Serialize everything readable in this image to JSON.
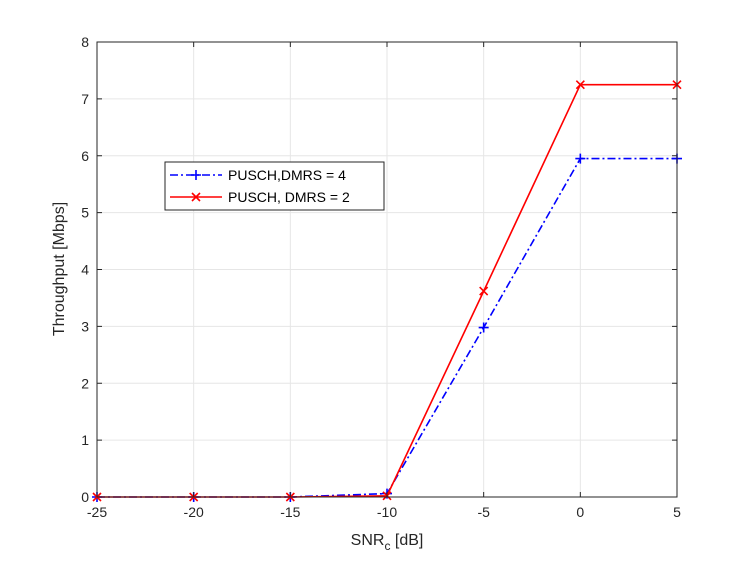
{
  "chart_data": {
    "type": "line",
    "xlabel_main": "SNR",
    "xlabel_sub": "c",
    "xlabel_unit": " [dB]",
    "ylabel": "Throughput [Mbps]",
    "xlim": [
      -25,
      5
    ],
    "ylim": [
      0,
      8
    ],
    "xticks": [
      -25,
      -20,
      -15,
      -10,
      -5,
      0,
      5
    ],
    "yticks": [
      0,
      1,
      2,
      3,
      4,
      5,
      6,
      7,
      8
    ],
    "grid": true,
    "legend_position": "upper-left-inside",
    "x": [
      -25,
      -20,
      -15,
      -10,
      -5,
      0,
      5
    ],
    "series": [
      {
        "name": "PUSCH,DMRS = 4",
        "values": [
          0,
          0,
          0,
          0.06,
          2.98,
          5.95,
          5.95
        ],
        "color": "#0000ff",
        "line_style": "dash-dot",
        "marker": "plus"
      },
      {
        "name": "PUSCH, DMRS = 2",
        "values": [
          0,
          0,
          0,
          0.02,
          3.62,
          7.25,
          7.25
        ],
        "color": "#ff0000",
        "line_style": "solid",
        "marker": "x"
      }
    ]
  }
}
